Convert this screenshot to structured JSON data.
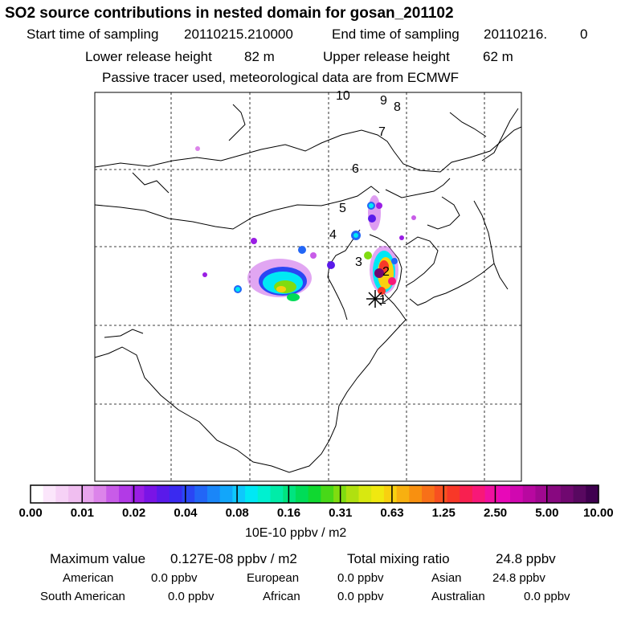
{
  "title": "SO2 source contributions in nested domain for gosan_201102",
  "sampling": {
    "start_label": "Start time of sampling",
    "start_value": "20110215.210000",
    "end_label": "End time of sampling",
    "end_value": "20110216.",
    "end_suffix": "0"
  },
  "release": {
    "lower_label": "Lower release height",
    "lower_value": "82 m",
    "upper_label": "Upper release height",
    "upper_value": "62 m"
  },
  "tracer_note": "Passive tracer used, meteorological data are from ECMWF",
  "trajectory_labels": [
    "1",
    "2",
    "3",
    "4",
    "5",
    "6",
    "7",
    "8",
    "9",
    "10"
  ],
  "colorbar": {
    "tick_labels": [
      "0.00",
      "0.01",
      "0.02",
      "0.04",
      "0.08",
      "0.16",
      "0.31",
      "0.63",
      "1.25",
      "2.50",
      "5.00",
      "10.00"
    ],
    "units": "10E-10 ppbv / m2",
    "colors": [
      "#ffffff",
      "#fbe6fb",
      "#f6d2f6",
      "#f0bef0",
      "#e8a4ee",
      "#dc84ea",
      "#c85ce8",
      "#b23ae6",
      "#9a1ee4",
      "#7a14e6",
      "#5a1aea",
      "#3a2af0",
      "#2a46f4",
      "#2266f6",
      "#1a86f8",
      "#12a6fa",
      "#0ec8fc",
      "#00e8f4",
      "#00f0d0",
      "#00eca8",
      "#00e480",
      "#00dc58",
      "#10d830",
      "#48d818",
      "#80dc10",
      "#b0e010",
      "#d8e810",
      "#f0e810",
      "#f8d010",
      "#f8b010",
      "#f89010",
      "#f87018",
      "#f85020",
      "#f83828",
      "#f82050",
      "#f81878",
      "#f010a0",
      "#e808b8",
      "#d008b0",
      "#b808a0",
      "#a00890",
      "#880880",
      "#700870",
      "#580860",
      "#400050"
    ]
  },
  "stats": {
    "max_label": "Maximum value",
    "max_value": "0.127E-08 ppbv / m2",
    "total_label": "Total mixing ratio",
    "total_value": "24.8 ppbv"
  },
  "regions": [
    {
      "name": "American",
      "value": "0.0 ppbv"
    },
    {
      "name": "European",
      "value": "0.0 ppbv"
    },
    {
      "name": "Asian",
      "value": "24.8 ppbv"
    },
    {
      "name": "South American",
      "value": "0.0 ppbv"
    },
    {
      "name": "African",
      "value": "0.0 ppbv"
    },
    {
      "name": "Australian",
      "value": "0.0 ppbv"
    }
  ]
}
